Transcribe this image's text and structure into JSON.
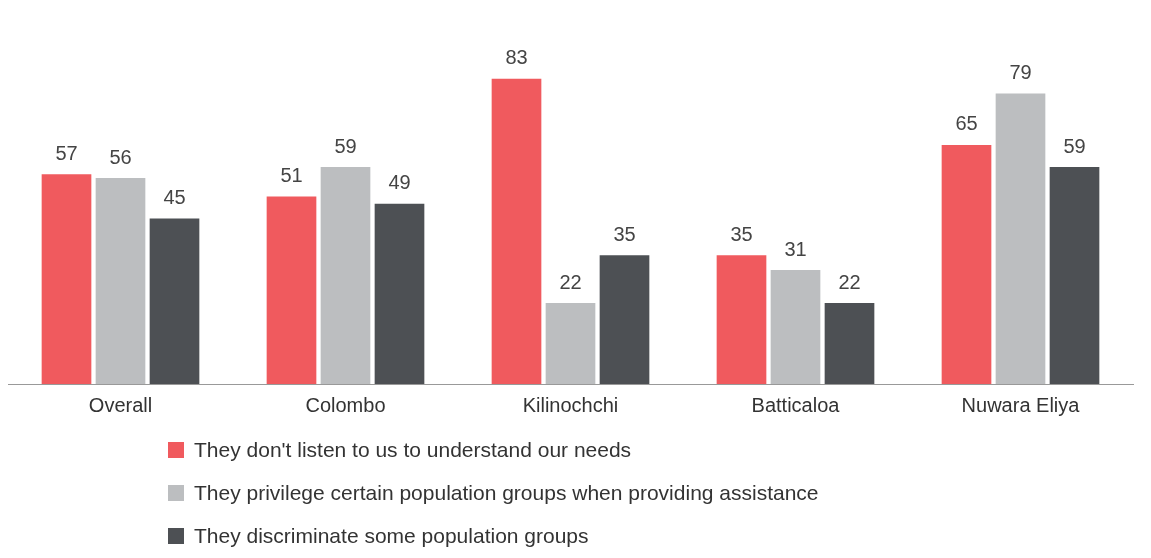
{
  "chart_data": {
    "type": "bar",
    "categories": [
      "Overall",
      "Colombo",
      "Kilinochchi",
      "Batticaloa",
      "Nuwara Eliya"
    ],
    "series": [
      {
        "name": "They don't listen to us to understand our needs",
        "color": "#f05a5e",
        "values": [
          57,
          51,
          83,
          35,
          65
        ]
      },
      {
        "name": "They privilege certain population groups when providing assistance",
        "color": "#bcbec0",
        "values": [
          56,
          59,
          22,
          31,
          79
        ]
      },
      {
        "name": "They discriminate some population groups",
        "color": "#4d5054",
        "values": [
          45,
          49,
          35,
          22,
          59
        ]
      }
    ],
    "data_labels": true,
    "grid": false,
    "legend": "bottom"
  }
}
